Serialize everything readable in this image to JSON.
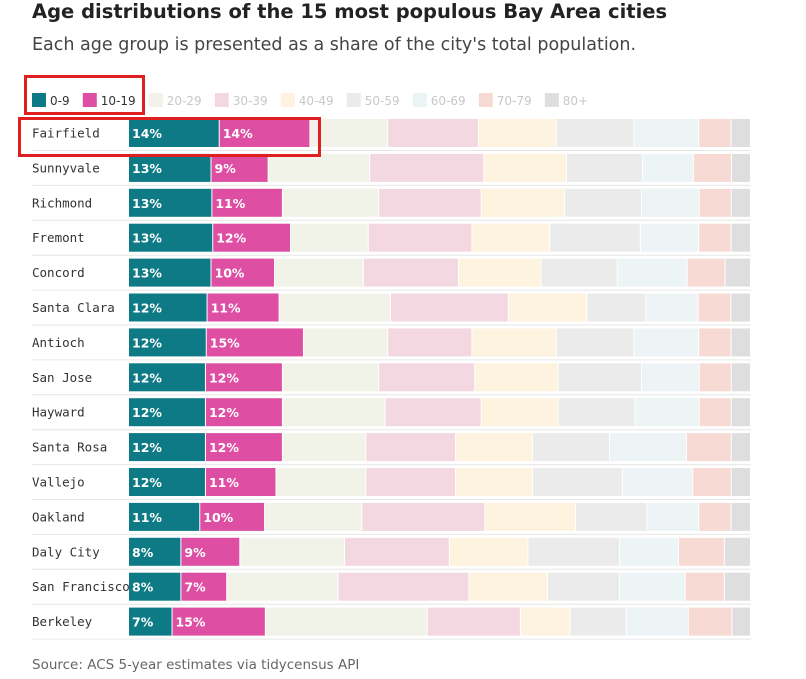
{
  "title": "Age distributions of the 15 most populous Bay Area cities",
  "subtitle": "Each age group is presented as a share of the city's total population.",
  "source": "Source: ACS 5-year estimates via tidycensus API",
  "chart_data": {
    "type": "bar",
    "orientation": "horizontal",
    "stacked": true,
    "value_unit": "percent",
    "legend_position": "top-left",
    "grid": false,
    "categories": [
      "Fairfield",
      "Sunnyvale",
      "Richmond",
      "Fremont",
      "Concord",
      "Santa Clara",
      "Antioch",
      "San Jose",
      "Hayward",
      "Santa Rosa",
      "Vallejo",
      "Oakland",
      "Daly City",
      "San Francisco",
      "Berkeley"
    ],
    "series": [
      {
        "name": "0-9",
        "color": "#0d7a85",
        "labeled": true,
        "values": [
          14,
          13,
          13,
          13,
          13,
          12,
          12,
          12,
          12,
          12,
          12,
          11,
          8,
          8,
          7
        ]
      },
      {
        "name": "10-19",
        "color": "#de4fa3",
        "labeled": true,
        "values": [
          14,
          9,
          11,
          12,
          10,
          11,
          15,
          12,
          12,
          12,
          11,
          10,
          9,
          7,
          15
        ]
      },
      {
        "name": "20-29",
        "color": "#f2f3e8",
        "labeled": false,
        "values": [
          12,
          16,
          15,
          12,
          14,
          17,
          13,
          15,
          16,
          13,
          14,
          15,
          16,
          17,
          26
        ]
      },
      {
        "name": "30-39",
        "color": "#f3d8e2",
        "labeled": false,
        "values": [
          14,
          18,
          16,
          16,
          15,
          18,
          13,
          15,
          15,
          14,
          14,
          19,
          16,
          20,
          15
        ]
      },
      {
        "name": "40-49",
        "color": "#fdf3de",
        "labeled": false,
        "values": [
          12,
          13,
          13,
          12,
          13,
          12,
          13,
          13,
          12,
          12,
          12,
          14,
          12,
          12,
          8
        ]
      },
      {
        "name": "50-59",
        "color": "#ebebeb",
        "labeled": false,
        "values": [
          12,
          12,
          12,
          14,
          12,
          9,
          12,
          13,
          12,
          12,
          14,
          11,
          14,
          11,
          9
        ]
      },
      {
        "name": "60-69",
        "color": "#ecf4f6",
        "labeled": false,
        "values": [
          10,
          8,
          9,
          9,
          11,
          8,
          10,
          9,
          10,
          12,
          11,
          8,
          9,
          10,
          10
        ]
      },
      {
        "name": "70-79",
        "color": "#f8dad4",
        "labeled": false,
        "values": [
          5,
          6,
          5,
          5,
          6,
          5,
          5,
          5,
          5,
          7,
          6,
          5,
          7,
          6,
          7
        ]
      },
      {
        "name": "80+",
        "color": "#dedede",
        "labeled": false,
        "values": [
          3,
          3,
          3,
          3,
          4,
          3,
          3,
          3,
          3,
          3,
          3,
          3,
          4,
          4,
          3
        ]
      }
    ]
  }
}
